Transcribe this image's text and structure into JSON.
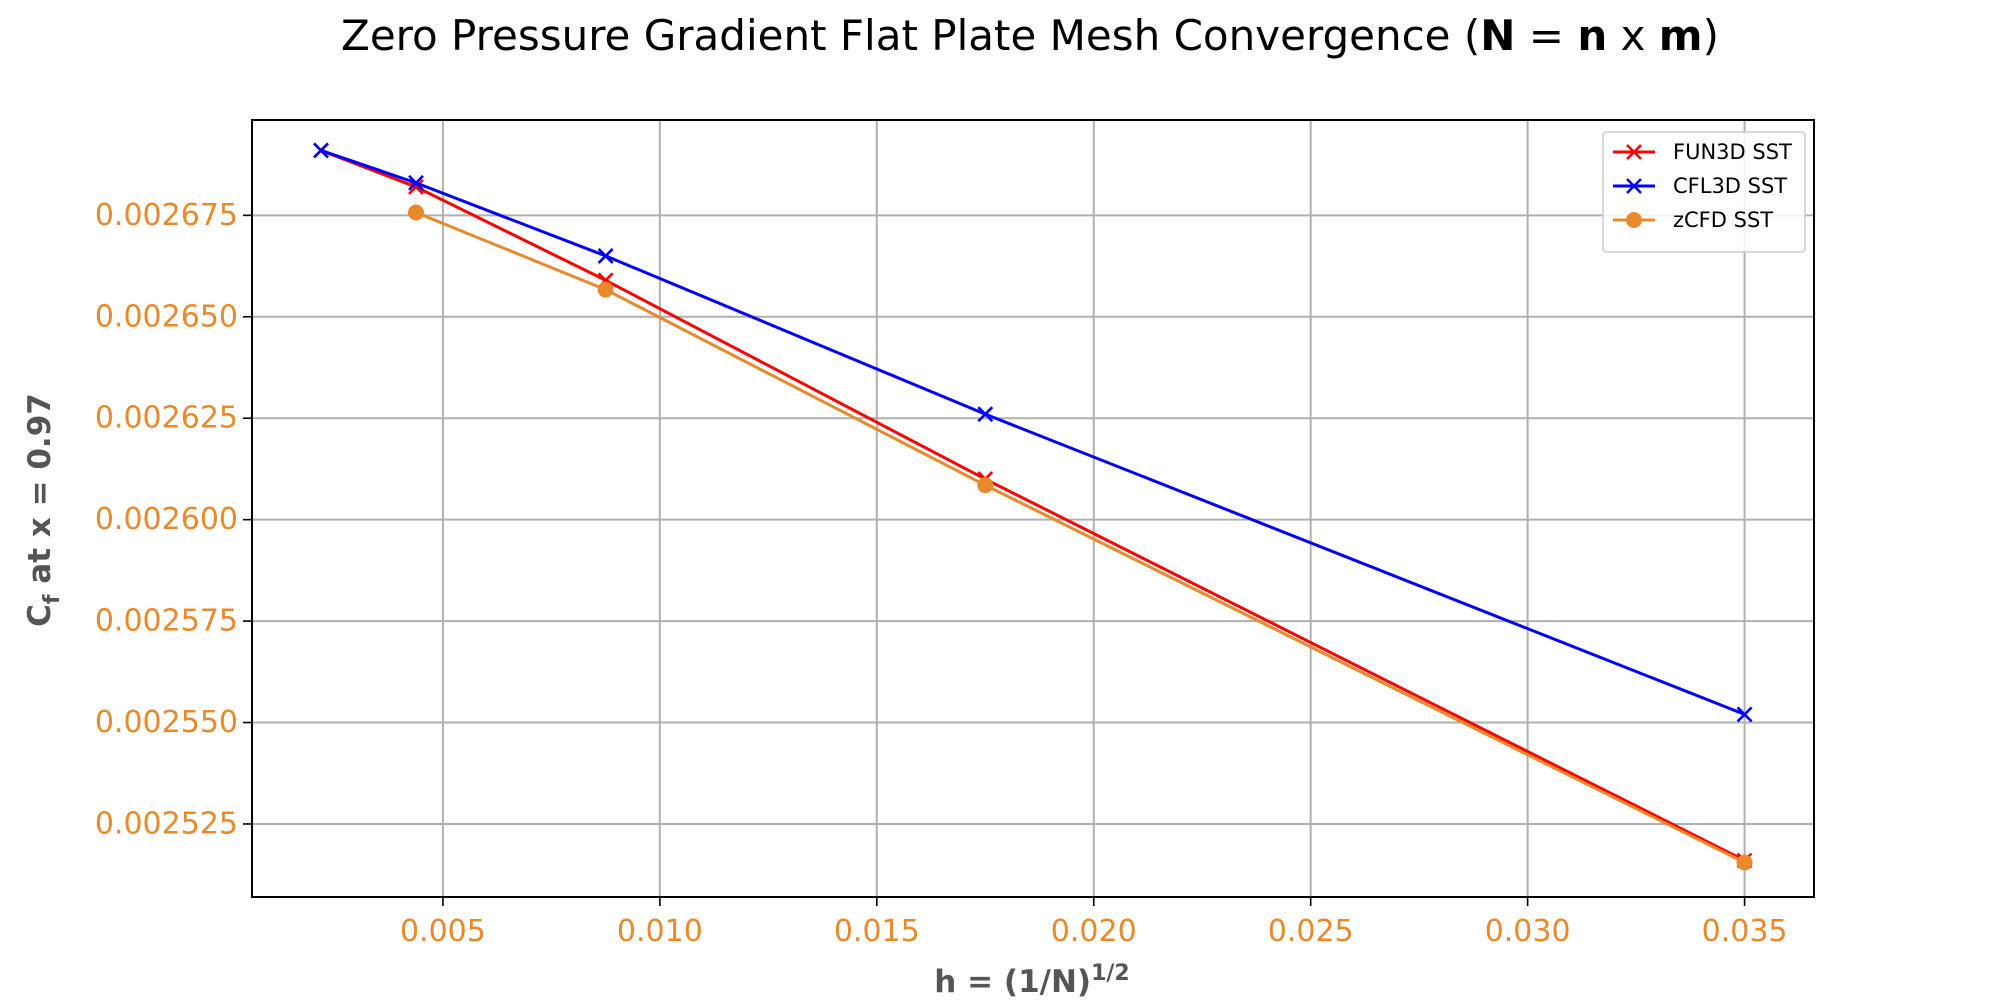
{
  "chart_data": {
    "type": "line",
    "title": {
      "prefix": "Zero Pressure Gradient Flat Plate Mesh Convergence (",
      "bold_N": "N",
      "eq": " = ",
      "bold_n": "n",
      "x": " x ",
      "bold_m": "m",
      "suffix": ")"
    },
    "xlabel": {
      "base": "h = (1/N)",
      "sup": "1/2"
    },
    "ylabel": {
      "base": "C",
      "sub": "f",
      "rest": " at x = 0.97"
    },
    "xlim": [
      0.0006,
      0.0366
    ],
    "ylim": [
      0.002507,
      0.0026985
    ],
    "xticks": [
      0.005,
      0.01,
      0.015,
      0.02,
      0.025,
      0.03,
      0.035
    ],
    "xtick_labels": [
      "0.005",
      "0.010",
      "0.015",
      "0.020",
      "0.025",
      "0.030",
      "0.035"
    ],
    "yticks": [
      0.002525,
      0.00255,
      0.002575,
      0.0026,
      0.002625,
      0.00265,
      0.002675
    ],
    "ytick_labels": [
      "0.002525",
      "0.002550",
      "0.002575",
      "0.002600",
      "0.002625",
      "0.002650",
      "0.002675"
    ],
    "grid": true,
    "legend_position": "top-right",
    "tick_label_color": "#e8892b",
    "series": [
      {
        "name": "FUN3D SST",
        "color": "#ff0000",
        "marker": "x",
        "x": [
          0.00219,
          0.00438,
          0.00875,
          0.0175,
          0.035
        ],
        "y": [
          0.002691,
          0.002682,
          0.002659,
          0.00261,
          0.002516
        ]
      },
      {
        "name": "CFL3D SST",
        "color": "#0000ff",
        "marker": "x",
        "x": [
          0.00219,
          0.00438,
          0.00875,
          0.0175,
          0.035
        ],
        "y": [
          0.002691,
          0.002683,
          0.002665,
          0.002626,
          0.002552
        ]
      },
      {
        "name": "zCFD SST",
        "color": "#e8892b",
        "marker": "o",
        "x": [
          0.00438,
          0.00875,
          0.0175,
          0.035
        ],
        "y": [
          0.0026757,
          0.0026567,
          0.0026085,
          0.0025155
        ]
      }
    ]
  }
}
